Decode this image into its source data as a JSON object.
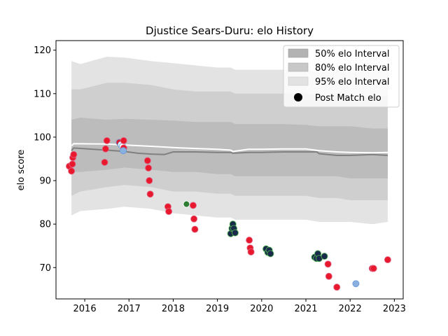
{
  "chart_data": {
    "type": "line",
    "title": "Djustice Sears-Duru: elo History",
    "xlabel": "",
    "ylabel": "elo score",
    "xlim": [
      2015.35,
      2023.2
    ],
    "ylim": [
      62.8,
      122.2
    ],
    "x_ticks": [
      2016,
      2017,
      2018,
      2019,
      2020,
      2021,
      2022,
      2023
    ],
    "x_tick_labels": [
      "2016",
      "2017",
      "2018",
      "2019",
      "2020",
      "2021",
      "2022",
      "2023"
    ],
    "y_ticks": [
      70,
      80,
      90,
      100,
      110,
      120
    ],
    "y_tick_labels": [
      "70",
      "80",
      "90",
      "100",
      "110",
      "120"
    ],
    "grid": false,
    "legend_position": "top-right",
    "legend": [
      {
        "label": "50% elo Interval",
        "kind": "band",
        "color": "#b3b3b3"
      },
      {
        "label": "80% elo Interval",
        "kind": "band",
        "color": "#c8c8c8"
      },
      {
        "label": "95% elo Interval",
        "kind": "band",
        "color": "#e2e2e2"
      },
      {
        "label": "Post Match elo",
        "kind": "marker",
        "color": "#000000"
      }
    ],
    "bands": {
      "x": [
        2015.7,
        2015.9,
        2016.5,
        2016.9,
        2017.5,
        2018.0,
        2018.5,
        2019.0,
        2019.3,
        2019.4,
        2019.7,
        2020.0,
        2020.5,
        2021.0,
        2021.3,
        2021.7,
        2022.0,
        2022.5,
        2022.85
      ],
      "lower95": [
        82.0,
        83.0,
        83.5,
        84.0,
        83.5,
        82.5,
        82.0,
        81.5,
        81.5,
        81.0,
        81.0,
        81.0,
        81.0,
        81.0,
        80.5,
        80.5,
        80.5,
        80.0,
        80.5
      ],
      "upper95": [
        117.5,
        116.8,
        118.5,
        118.3,
        117.5,
        117.0,
        116.5,
        116.0,
        116.0,
        115.5,
        115.5,
        115.5,
        115.5,
        115.5,
        115.0,
        115.0,
        115.0,
        115.0,
        115.5
      ],
      "lower80": [
        86.5,
        87.5,
        88.5,
        89.0,
        88.5,
        87.5,
        87.5,
        87.0,
        87.0,
        86.5,
        86.5,
        86.5,
        86.5,
        86.5,
        86.0,
        86.0,
        85.5,
        85.5,
        85.5
      ],
      "upper80": [
        111.0,
        111.0,
        112.5,
        112.5,
        112.0,
        111.0,
        110.5,
        110.5,
        110.5,
        110.0,
        110.0,
        110.0,
        110.0,
        110.0,
        109.5,
        109.5,
        109.5,
        109.0,
        109.5
      ],
      "lower50": [
        92.0,
        92.0,
        92.5,
        93.0,
        92.5,
        92.0,
        92.0,
        91.5,
        91.5,
        91.0,
        91.0,
        91.0,
        91.0,
        91.0,
        91.0,
        91.0,
        90.5,
        90.5,
        90.5
      ],
      "upper50": [
        104.0,
        104.5,
        104.0,
        104.2,
        104.0,
        103.8,
        103.5,
        103.5,
        103.5,
        103.0,
        103.0,
        103.0,
        103.0,
        102.8,
        102.5,
        102.5,
        102.5,
        102.0,
        102.0
      ]
    },
    "series": [
      {
        "kind": "line",
        "color": "#808080",
        "x": [
          2015.7,
          2015.75,
          2016.5,
          2016.9,
          2017.2,
          2017.5,
          2017.8,
          2018.0,
          2018.5,
          2019.0,
          2019.3,
          2019.35,
          2019.7,
          2020.0,
          2020.5,
          2021.0,
          2021.25,
          2021.3,
          2021.7,
          2022.0,
          2022.5,
          2022.85
        ],
        "y": [
          96.9,
          97.5,
          97.0,
          96.7,
          96.3,
          96.1,
          96.0,
          96.6,
          96.6,
          96.5,
          96.5,
          96.3,
          96.5,
          96.5,
          96.6,
          96.6,
          96.6,
          96.2,
          95.8,
          95.8,
          96.0,
          95.8
        ]
      },
      {
        "kind": "line",
        "color": "#ffffff",
        "x": [
          2015.7,
          2015.75,
          2016.5,
          2016.9,
          2017.5,
          2018.0,
          2018.5,
          2019.0,
          2019.3,
          2019.35,
          2019.7,
          2020.0,
          2020.5,
          2021.0,
          2021.3,
          2021.7,
          2022.0,
          2022.5,
          2022.85
        ],
        "y": [
          98.0,
          98.5,
          98.4,
          98.2,
          97.9,
          97.6,
          97.4,
          97.2,
          97.0,
          96.7,
          97.2,
          97.2,
          97.3,
          97.3,
          96.9,
          96.6,
          96.5,
          96.4,
          96.5
        ]
      }
    ],
    "points": [
      {
        "x": 2015.65,
        "y": 93.3,
        "color": "#e8192c",
        "edge": "#e06080"
      },
      {
        "x": 2015.7,
        "y": 92.2,
        "color": "#e8192c",
        "edge": "#e06080"
      },
      {
        "x": 2015.72,
        "y": 93.8,
        "color": "#e8192c",
        "edge": "#e06080"
      },
      {
        "x": 2015.73,
        "y": 95.3,
        "color": "#e8192c",
        "edge": "#e06080"
      },
      {
        "x": 2015.75,
        "y": 96.0,
        "color": "#e8192c",
        "edge": "#e06080"
      },
      {
        "x": 2016.45,
        "y": 94.2,
        "color": "#e8192c",
        "edge": "#e06080"
      },
      {
        "x": 2016.47,
        "y": 97.3,
        "color": "#e8192c",
        "edge": "#e06080"
      },
      {
        "x": 2016.5,
        "y": 99.2,
        "color": "#e8192c",
        "edge": "#e06080"
      },
      {
        "x": 2016.78,
        "y": 98.8,
        "color": "#e8192c",
        "edge": "#6a9bd8"
      },
      {
        "x": 2016.82,
        "y": 98.3,
        "color": "#ffffff",
        "edge": "#6a9bd8"
      },
      {
        "x": 2016.85,
        "y": 97.9,
        "color": "#ffffff",
        "edge": "#6a9bd8"
      },
      {
        "x": 2016.88,
        "y": 97.5,
        "color": "#e8192c",
        "edge": "#e06080"
      },
      {
        "x": 2016.88,
        "y": 99.2,
        "color": "#e8192c",
        "edge": "#e06080"
      },
      {
        "x": 2016.87,
        "y": 96.9,
        "color": "#8ab0e0",
        "edge": "#6a9bd8"
      },
      {
        "x": 2017.42,
        "y": 94.6,
        "color": "#e8192c",
        "edge": "#e06080"
      },
      {
        "x": 2017.44,
        "y": 92.9,
        "color": "#e8192c",
        "edge": "#e06080"
      },
      {
        "x": 2017.46,
        "y": 90.0,
        "color": "#e8192c",
        "edge": "#e06080"
      },
      {
        "x": 2017.48,
        "y": 86.9,
        "color": "#e8192c",
        "edge": "#e06080"
      },
      {
        "x": 2017.88,
        "y": 84.0,
        "color": "#e8192c",
        "edge": "#e06080"
      },
      {
        "x": 2017.9,
        "y": 82.9,
        "color": "#e8192c",
        "edge": "#e06080"
      },
      {
        "x": 2018.3,
        "y": 84.6,
        "color": "#2e7d32",
        "edge": "#ffffff"
      },
      {
        "x": 2018.45,
        "y": 84.3,
        "color": "#e8192c",
        "edge": "#e06080"
      },
      {
        "x": 2018.47,
        "y": 81.2,
        "color": "#e8192c",
        "edge": "#e06080"
      },
      {
        "x": 2018.49,
        "y": 78.8,
        "color": "#e8192c",
        "edge": "#e06080"
      },
      {
        "x": 2019.3,
        "y": 77.8,
        "color": "#1a2a4a",
        "edge": "#4caf50"
      },
      {
        "x": 2019.33,
        "y": 79.0,
        "color": "#1a2a4a",
        "edge": "#4caf50"
      },
      {
        "x": 2019.35,
        "y": 80.0,
        "color": "#1a2a4a",
        "edge": "#4caf50"
      },
      {
        "x": 2019.37,
        "y": 79.0,
        "color": "#1a2a4a",
        "edge": "#4caf50"
      },
      {
        "x": 2019.4,
        "y": 78.0,
        "color": "#1a2a4a",
        "edge": "#4caf50"
      },
      {
        "x": 2019.72,
        "y": 76.3,
        "color": "#e8192c",
        "edge": "#e06080"
      },
      {
        "x": 2019.74,
        "y": 74.5,
        "color": "#e8192c",
        "edge": "#e06080"
      },
      {
        "x": 2019.76,
        "y": 73.6,
        "color": "#e8192c",
        "edge": "#e06080"
      },
      {
        "x": 2020.1,
        "y": 74.3,
        "color": "#1a2a4a",
        "edge": "#4caf50"
      },
      {
        "x": 2020.14,
        "y": 73.5,
        "color": "#1a2a4a",
        "edge": "#4caf50"
      },
      {
        "x": 2020.17,
        "y": 74.0,
        "color": "#1a2a4a",
        "edge": "#4caf50"
      },
      {
        "x": 2020.2,
        "y": 73.2,
        "color": "#1a2a4a",
        "edge": "#4caf50"
      },
      {
        "x": 2021.2,
        "y": 72.4,
        "color": "#1a2a4a",
        "edge": "#4caf50"
      },
      {
        "x": 2021.24,
        "y": 72.1,
        "color": "#1a2a4a",
        "edge": "#4caf50"
      },
      {
        "x": 2021.27,
        "y": 73.2,
        "color": "#1a2a4a",
        "edge": "#4caf50"
      },
      {
        "x": 2021.3,
        "y": 72.1,
        "color": "#1a2a4a",
        "edge": "#4caf50"
      },
      {
        "x": 2021.42,
        "y": 72.6,
        "color": "#1a2a4a",
        "edge": "#4caf50"
      },
      {
        "x": 2021.5,
        "y": 70.8,
        "color": "#e8192c",
        "edge": "#e06080"
      },
      {
        "x": 2021.52,
        "y": 68.0,
        "color": "#e8192c",
        "edge": "#e06080"
      },
      {
        "x": 2021.7,
        "y": 65.5,
        "color": "#e8192c",
        "edge": "#e06080"
      },
      {
        "x": 2022.13,
        "y": 66.3,
        "color": "#8ab0e0",
        "edge": "#6a9bd8"
      },
      {
        "x": 2022.5,
        "y": 69.8,
        "color": "#e8192c",
        "edge": "#e06080"
      },
      {
        "x": 2022.53,
        "y": 69.8,
        "color": "#e8192c",
        "edge": "#e06080"
      },
      {
        "x": 2022.85,
        "y": 71.8,
        "color": "#e8192c",
        "edge": "#e06080"
      }
    ]
  }
}
